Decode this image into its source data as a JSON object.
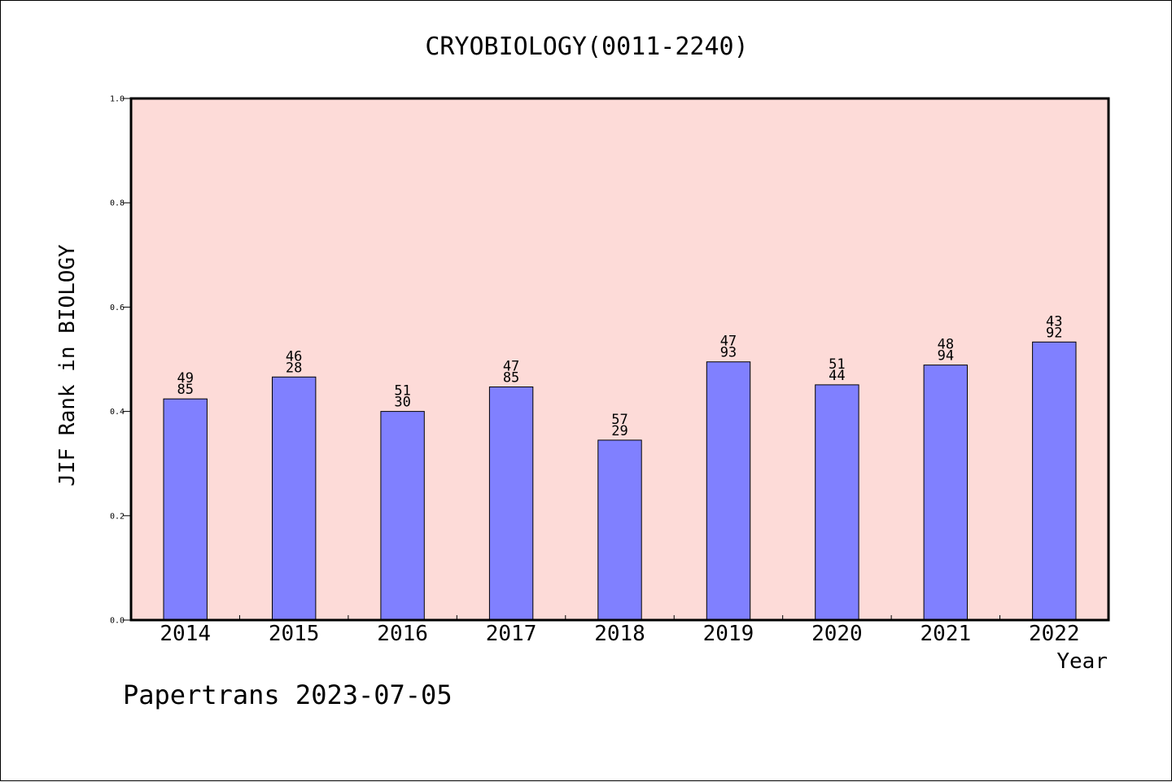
{
  "chart_data": {
    "type": "bar",
    "title": "CRYOBIOLOGY(0011-2240)",
    "xlabel": "Year",
    "ylabel": "JIF Rank in BIOLOGY",
    "ylim": [
      0.0,
      1.0
    ],
    "yticks": [
      "0.0",
      "0.2",
      "0.4",
      "0.6",
      "0.8",
      "1.0"
    ],
    "ytick_values": [
      0.0,
      0.2,
      0.4,
      0.6,
      0.8,
      1.0
    ],
    "categories": [
      "2014",
      "2015",
      "2016",
      "2017",
      "2018",
      "2019",
      "2020",
      "2021",
      "2022"
    ],
    "values": [
      0.424,
      0.466,
      0.4,
      0.447,
      0.345,
      0.495,
      0.451,
      0.489,
      0.533
    ],
    "labels_top": [
      "49",
      "46",
      "51",
      "47",
      "57",
      "47",
      "51",
      "48",
      "43"
    ],
    "labels_bottom": [
      "85",
      "28",
      "30",
      "85",
      "29",
      "93",
      "44",
      "94",
      "92"
    ],
    "grid": false,
    "plot_background": "#FDDBD8",
    "bar_color": "#8080FF"
  },
  "footer": "Papertrans 2023-07-05"
}
